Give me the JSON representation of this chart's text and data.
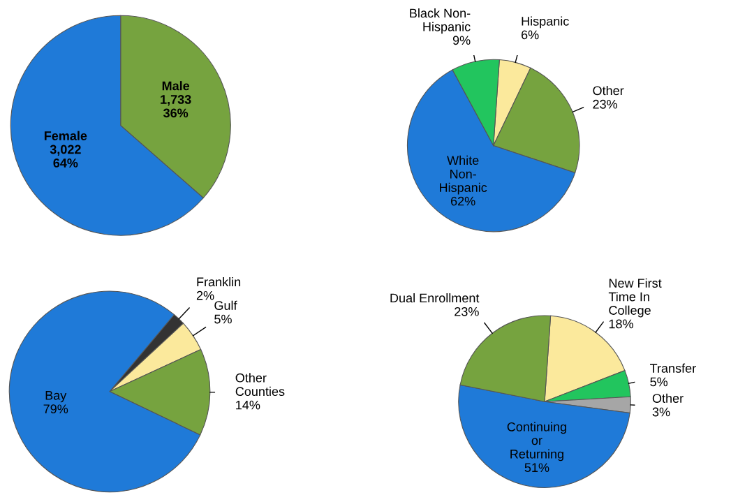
{
  "chart_data": [
    {
      "type": "pie",
      "categories": [
        "Male",
        "Female"
      ],
      "values": [
        1733,
        3022
      ],
      "value_labels": [
        "1,733\n36%",
        "3,022\n64%"
      ],
      "colors": [
        "#76a33f",
        "#1f7ad8"
      ],
      "legend": false
    },
    {
      "type": "pie",
      "categories": [
        "Hispanic",
        "Other",
        "White\nNon-\nHispanic",
        "Black Non-\nHispanic"
      ],
      "values": [
        6,
        23,
        62,
        9
      ],
      "value_labels": [
        "6%",
        "23%",
        "62%",
        "9%"
      ],
      "colors": [
        "#fbe99c",
        "#76a33f",
        "#1f7ad8",
        "#22c55e"
      ],
      "legend": false
    },
    {
      "type": "pie",
      "categories": [
        "Franklin",
        "Gulf",
        "Other\nCounties",
        "Bay"
      ],
      "values": [
        2,
        5,
        14,
        79
      ],
      "value_labels": [
        "2%",
        "5%",
        "14%",
        "79%"
      ],
      "colors": [
        "#333333",
        "#fbe99c",
        "#76a33f",
        "#1f7ad8"
      ],
      "legend": false
    },
    {
      "type": "pie",
      "categories": [
        "New First\nTime In\nCollege",
        "Transfer",
        "Other",
        "Continuing\nor\nReturning",
        "Dual Enrollment"
      ],
      "values": [
        18,
        5,
        3,
        51,
        23
      ],
      "value_labels": [
        "18%",
        "5%",
        "3%",
        "51%",
        "23%"
      ],
      "colors": [
        "#fbe99c",
        "#22c55e",
        "#a6a6a6",
        "#1f7ad8",
        "#76a33f"
      ],
      "legend": false
    }
  ]
}
